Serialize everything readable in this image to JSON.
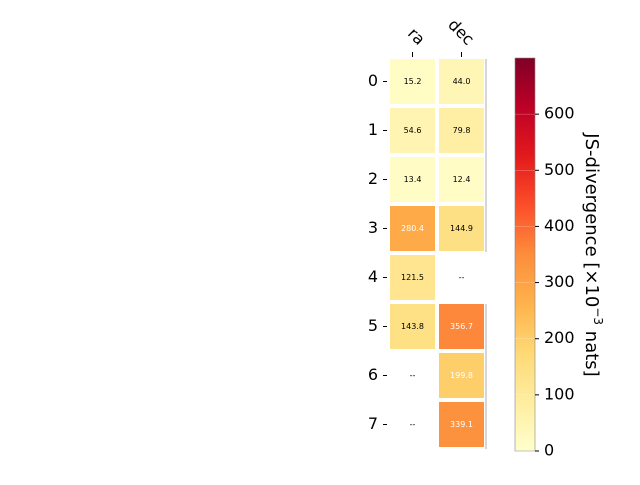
{
  "chart_data": {
    "type": "heatmap",
    "title": "",
    "columns": [
      "ra",
      "dec"
    ],
    "rows": [
      "0",
      "1",
      "2",
      "3",
      "4",
      "5",
      "6",
      "7"
    ],
    "values": [
      [
        15.2,
        44.0
      ],
      [
        54.6,
        79.8
      ],
      [
        13.4,
        12.4
      ],
      [
        280.4,
        144.9
      ],
      [
        121.5,
        null
      ],
      [
        143.8,
        356.7
      ],
      [
        null,
        199.8
      ],
      [
        null,
        339.1
      ]
    ],
    "cell_labels": [
      [
        "15.2",
        "44.0"
      ],
      [
        "54.6",
        "79.8"
      ],
      [
        "13.4",
        "12.4"
      ],
      [
        "280.4",
        "144.9"
      ],
      [
        "121.5",
        "--"
      ],
      [
        "143.8",
        "356.7"
      ],
      [
        "--",
        "199.8"
      ],
      [
        "--",
        "339.1"
      ]
    ],
    "missing_label": "--",
    "colorbar": {
      "label": "JS-divergence [×10⁻³ nats]",
      "label_parts": {
        "prefix": "JS-divergence [×10",
        "exponent": "−3",
        "suffix": " nats]"
      },
      "range": [
        0,
        700
      ],
      "ticks": [
        0,
        100,
        200,
        300,
        400,
        500,
        600
      ],
      "colormap": "YlOrRd"
    }
  }
}
